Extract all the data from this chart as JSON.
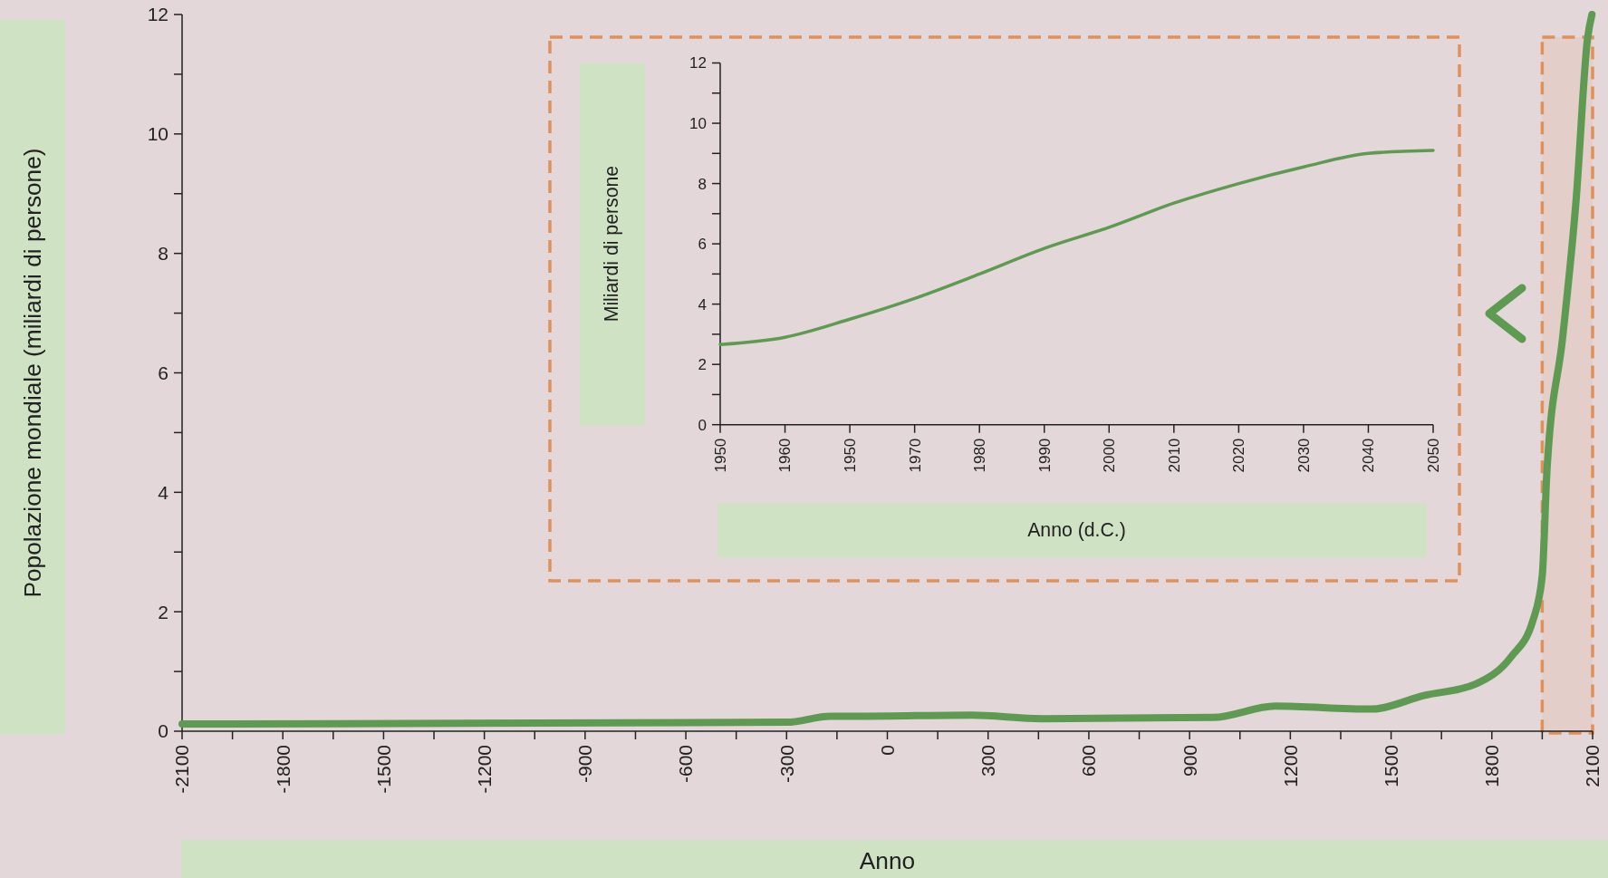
{
  "chart_data": [
    {
      "type": "line",
      "xlabel": "Anno",
      "ylabel": "Popolazione mondiale (miliardi di persone)",
      "series": [
        {
          "color": "#5f9a52",
          "x": [
            -2100,
            -300,
            -170,
            -80,
            250,
            460,
            970,
            1155,
            1440,
            1600,
            1752,
            1858,
            1922,
            1950,
            1964,
            2011,
            2051,
            2085,
            2098
          ],
          "values": [
            0.12,
            0.15,
            0.25,
            0.25,
            0.27,
            0.21,
            0.23,
            0.42,
            0.37,
            0.6,
            0.79,
            1.25,
            1.85,
            2.6,
            4.35,
            6.6,
            8.9,
            11.6,
            12
          ]
        }
      ],
      "xlim": [
        -2100,
        2100
      ],
      "xticks": [
        -2100,
        {
          "value": -1950,
          "label": null
        },
        -1800,
        {
          "value": -1650,
          "label": null
        },
        -1500,
        {
          "value": -1350,
          "label": null
        },
        -1200,
        {
          "value": -1050,
          "label": null
        },
        -900,
        {
          "value": -750,
          "label": null
        },
        -600,
        {
          "value": -450,
          "label": null
        },
        -300,
        {
          "value": -150,
          "label": null
        },
        0,
        {
          "value": 150,
          "label": null
        },
        300,
        {
          "value": 450,
          "label": null
        },
        600,
        {
          "value": 750,
          "label": null
        },
        900,
        {
          "value": 1050,
          "label": null
        },
        1200,
        {
          "value": 1350,
          "label": null
        },
        1500,
        {
          "value": 1650,
          "label": null
        },
        1800,
        {
          "value": 1950,
          "label": null
        },
        2100
      ],
      "ylim": [
        0,
        12
      ],
      "yticks": [
        0,
        {
          "value": 1,
          "label": null
        },
        2,
        {
          "value": 3,
          "label": null
        },
        4,
        {
          "value": 5,
          "label": null
        },
        6,
        {
          "value": 7,
          "label": null
        },
        8,
        {
          "value": 9,
          "label": null
        },
        10,
        {
          "value": 11,
          "label": null
        },
        12
      ],
      "bands": [
        {
          "axis": "x",
          "from": 1950,
          "to": 2100,
          "color": "#e0915a"
        }
      ]
    },
    {
      "type": "line",
      "xlabel": "Anno (d.C.)",
      "ylabel": "Miliardi di persone",
      "categories": [
        "1950",
        "1960",
        "1950",
        "1970",
        "1980",
        "1990",
        "2000",
        "2010",
        "2020",
        "2030",
        "2040",
        "2050"
      ],
      "series": [
        {
          "color": "#5f9a52",
          "values": [
            2.66,
            2.9,
            3.5,
            4.19,
            5.0,
            5.85,
            6.55,
            7.35,
            8.0,
            8.55,
            9.0,
            9.1
          ]
        }
      ],
      "ylim": [
        0,
        12
      ],
      "yticks": [
        0,
        {
          "value": 1,
          "label": null
        },
        2,
        {
          "value": 3,
          "label": null
        },
        4,
        {
          "value": 5,
          "label": null
        },
        6,
        {
          "value": 7,
          "label": null
        },
        8,
        {
          "value": 9,
          "label": null
        },
        10,
        {
          "value": 11,
          "label": null
        },
        12
      ]
    }
  ]
}
